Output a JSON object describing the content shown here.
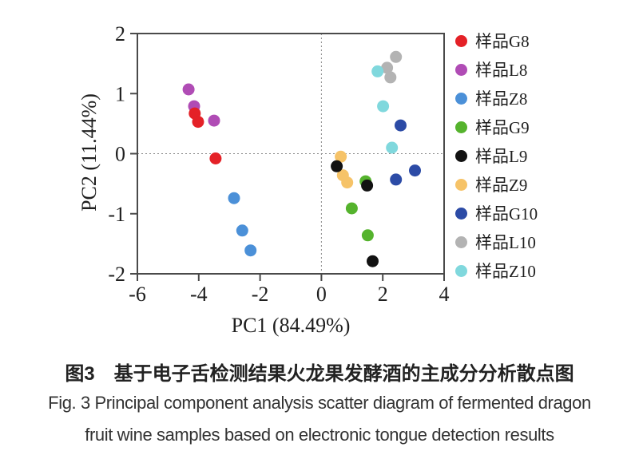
{
  "captions": {
    "chinese": "图3　基于电子舌检测结果火龙果发酵酒的主成分分析散点图",
    "english_line1": "Fig. 3 Principal component analysis scatter diagram of fermented dragon",
    "english_line2": "fruit wine samples based on electronic tongue detection results"
  },
  "chart_data": {
    "type": "scatter",
    "title": "",
    "xlabel": "PC1 (84.49%)",
    "ylabel": "PC2 (11.44%)",
    "xlim": [
      -6,
      4
    ],
    "ylim": [
      -2,
      2
    ],
    "xticks": [
      "-6",
      "-4",
      "-2",
      "0",
      "2",
      "4"
    ],
    "xtick_values": [
      -6,
      -4,
      -2,
      0,
      2,
      4
    ],
    "yticks": [
      "2",
      "1",
      "0",
      "-1",
      "-2"
    ],
    "ytick_values": [
      2,
      1,
      0,
      -1,
      -2
    ],
    "grid": "dotted reference lines at x=0 and y=0",
    "legend_position": "right",
    "axis_color": "#4a4a4a",
    "zero_line_color": "#8a8a8a",
    "marker_radius_px": 7.5,
    "series": [
      {
        "name": "样品G8",
        "color": "#e42127",
        "points": [
          [
            -4.13,
            0.67
          ],
          [
            -4.02,
            0.53
          ],
          [
            -3.45,
            -0.08
          ]
        ]
      },
      {
        "name": "样品L8",
        "color": "#b04cb5",
        "points": [
          [
            -4.33,
            1.07
          ],
          [
            -4.15,
            0.79
          ],
          [
            -3.5,
            0.55
          ]
        ]
      },
      {
        "name": "样品Z8",
        "color": "#4b90d8",
        "points": [
          [
            -2.85,
            -0.74
          ],
          [
            -2.58,
            -1.28
          ],
          [
            -2.31,
            -1.61
          ]
        ]
      },
      {
        "name": "样品G9",
        "color": "#55b32d",
        "points": [
          [
            1.44,
            -0.46
          ],
          [
            0.99,
            -0.91
          ],
          [
            1.51,
            -1.36
          ]
        ]
      },
      {
        "name": "样品L9",
        "color": "#121212",
        "points": [
          [
            0.5,
            -0.21
          ],
          [
            1.49,
            -0.53
          ],
          [
            1.67,
            -1.79
          ]
        ]
      },
      {
        "name": "样品Z9",
        "color": "#f6c368",
        "points": [
          [
            0.63,
            -0.05
          ],
          [
            0.7,
            -0.36
          ],
          [
            0.84,
            -0.48
          ]
        ]
      },
      {
        "name": "样品G10",
        "color": "#2c4ba6",
        "points": [
          [
            2.58,
            0.47
          ],
          [
            3.05,
            -0.28
          ],
          [
            2.43,
            -0.43
          ]
        ]
      },
      {
        "name": "样品L10",
        "color": "#b3b3b3",
        "points": [
          [
            2.43,
            1.61
          ],
          [
            2.14,
            1.43
          ],
          [
            2.25,
            1.27
          ]
        ]
      },
      {
        "name": "样品Z10",
        "color": "#80d8dd",
        "points": [
          [
            1.83,
            1.37
          ],
          [
            2.01,
            0.79
          ],
          [
            2.3,
            0.1
          ]
        ]
      }
    ]
  }
}
